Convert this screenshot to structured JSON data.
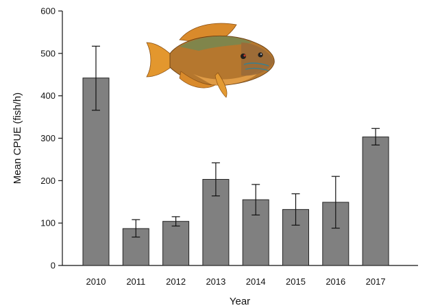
{
  "chart_data": {
    "type": "bar",
    "xlabel": "Year",
    "ylabel": "Mean CPUE (fish/h)",
    "categories": [
      "2010",
      "2011",
      "2012",
      "2013",
      "2014",
      "2015",
      "2016",
      "2017"
    ],
    "values": [
      442,
      87,
      104,
      203,
      155,
      132,
      149,
      303
    ],
    "error_upper": [
      517,
      108,
      115,
      242,
      191,
      169,
      210,
      323
    ],
    "error_lower": [
      366,
      67,
      93,
      164,
      119,
      95,
      88,
      284
    ],
    "ylim": [
      0,
      600
    ],
    "yticks": [
      "0",
      "100",
      "200",
      "300",
      "400",
      "500",
      "600"
    ],
    "grid": false,
    "colors": {
      "bar": "#808080",
      "bar_edge": "#222222"
    },
    "decoration": "sunfish-illustration"
  }
}
